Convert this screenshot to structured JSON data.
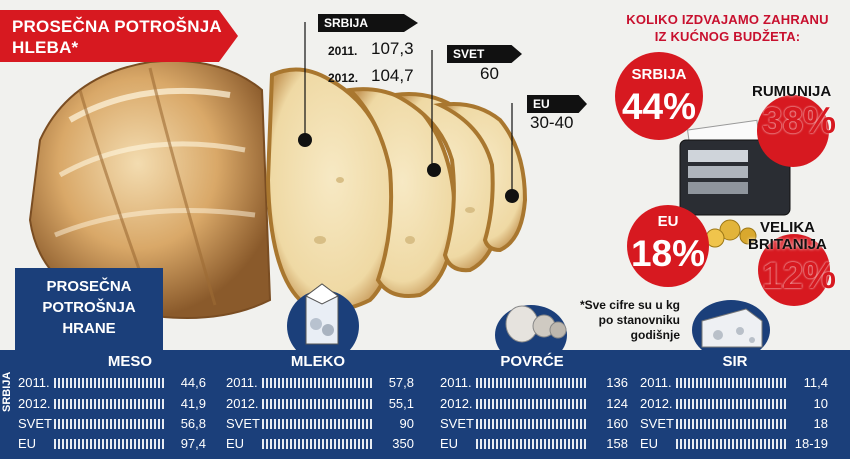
{
  "bread_consumption": {
    "title_line1": "PROSEČNA POTROŠNJA",
    "title_line2": "HLEBA*",
    "srbija": {
      "label": "SRBIJA",
      "rows": [
        {
          "year": "2011.",
          "value": "107,3"
        },
        {
          "year": "2012.",
          "value": "104,7"
        }
      ]
    },
    "svet": {
      "label": "SVET",
      "value": "60"
    },
    "eu": {
      "label": "EU",
      "value": "30-40"
    }
  },
  "budget": {
    "title_line1": "KOLIKO IZDVAJAMO ZAHRANU",
    "title_line2": "IZ KUĆNOG BUDŽETA:",
    "items": [
      {
        "name": "SRBIJA",
        "pct": "44%"
      },
      {
        "name": "RUMUNIJA",
        "pct": "38%"
      },
      {
        "name": "EU",
        "pct": "18%"
      },
      {
        "name_line1": "VELIKA",
        "name_line2": "BRITANIJA",
        "pct": "12%"
      }
    ]
  },
  "food": {
    "title_line1": "PROSEČNA",
    "title_line2": "POTROŠNJA",
    "title_line3": "HRANE",
    "side_label": "SRBIJA",
    "note_line1": "*Sve cifre su u kg",
    "note_line2": "po stanovniku",
    "note_line3": "godišnje",
    "row_labels": [
      "2011.",
      "2012.",
      "SVET",
      "EU"
    ],
    "columns": [
      {
        "name": "MESO",
        "values": [
          44.6,
          41.9,
          56.8,
          97.4
        ],
        "display": [
          "44,6",
          "41,9",
          "56,8",
          "97,4"
        ]
      },
      {
        "name": "MLEKO",
        "values": [
          57.8,
          55.1,
          90,
          350
        ],
        "display": [
          "57,8",
          "55,1",
          "90",
          "350"
        ]
      },
      {
        "name": "POVRĆE",
        "values": [
          136,
          124,
          160,
          158
        ],
        "display": [
          "136",
          "124",
          "160",
          "158"
        ]
      },
      {
        "name": "SIR",
        "values": [
          11.4,
          10,
          18,
          18.5
        ],
        "display": [
          "11,4",
          "10",
          "18",
          "18-19"
        ]
      }
    ]
  },
  "colors": {
    "accent_red": "#d71920",
    "navy": "#1b3f7a"
  }
}
